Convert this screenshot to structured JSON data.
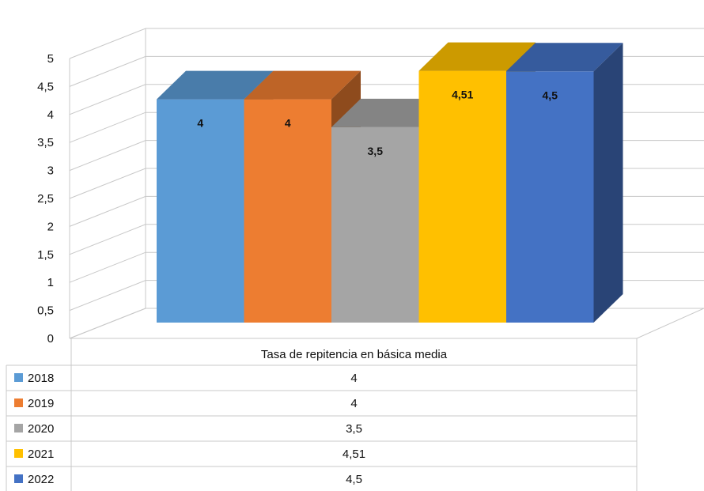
{
  "chart_data": {
    "type": "bar",
    "style": "3d-clustered-column",
    "categories": [
      "Tasa de repitencia en básica media"
    ],
    "series": [
      {
        "name": "2018",
        "values": [
          4
        ],
        "label": "4",
        "color": "#5B9BD5"
      },
      {
        "name": "2019",
        "values": [
          4
        ],
        "label": "4",
        "color": "#ED7D31"
      },
      {
        "name": "2020",
        "values": [
          3.5
        ],
        "label": "3,5",
        "color": "#A5A5A5"
      },
      {
        "name": "2021",
        "values": [
          4.51
        ],
        "label": "4,51",
        "color": "#FFC000"
      },
      {
        "name": "2022",
        "values": [
          4.5
        ],
        "label": "4,5",
        "color": "#4472C4"
      }
    ],
    "ylim": [
      0,
      5
    ],
    "yticks": [
      0,
      0.5,
      1,
      1.5,
      2,
      2.5,
      3,
      3.5,
      4,
      4.5,
      5
    ],
    "ytick_labels": [
      "0",
      "0,5",
      "1",
      "1,5",
      "2",
      "2,5",
      "3",
      "3,5",
      "4",
      "4,5",
      "5"
    ],
    "grid": true,
    "data_table": true,
    "legend": "data-table-left"
  }
}
